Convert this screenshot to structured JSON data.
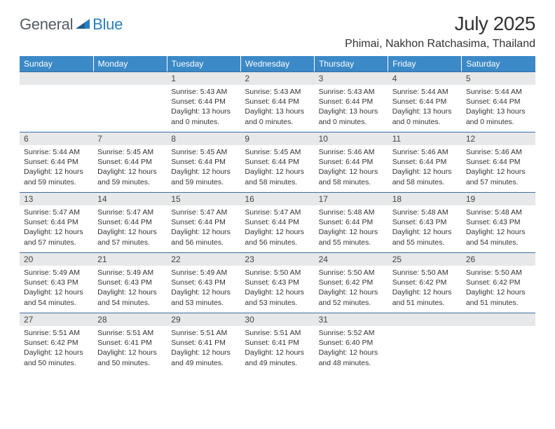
{
  "brand": {
    "name_left": "General",
    "name_right": "Blue",
    "icon_color": "#2a7fbf",
    "text_color_left": "#555c64",
    "text_color_right": "#2a7fbf"
  },
  "title": {
    "month_year": "July 2025",
    "location": "Phimai, Nakhon Ratchasima, Thailand"
  },
  "style": {
    "header_bg": "#3b89c7",
    "header_text": "#ffffff",
    "daynum_bg": "#e7e8e9",
    "daynum_border": "#3b6fa0",
    "body_text": "#333333",
    "page_bg": "#ffffff",
    "font_family": "Arial, Helvetica, sans-serif",
    "month_title_fontsize_pt": 21,
    "location_fontsize_pt": 12,
    "weekday_fontsize_pt": 9,
    "daynum_fontsize_pt": 9,
    "body_fontsize_pt": 8,
    "columns": 7,
    "rows": 5
  },
  "weekdays": [
    "Sunday",
    "Monday",
    "Tuesday",
    "Wednesday",
    "Thursday",
    "Friday",
    "Saturday"
  ],
  "weeks": [
    [
      {
        "blank": true
      },
      {
        "blank": true
      },
      {
        "day": "1",
        "sunrise": "Sunrise: 5:43 AM",
        "sunset": "Sunset: 6:44 PM",
        "daylight": "Daylight: 13 hours and 0 minutes."
      },
      {
        "day": "2",
        "sunrise": "Sunrise: 5:43 AM",
        "sunset": "Sunset: 6:44 PM",
        "daylight": "Daylight: 13 hours and 0 minutes."
      },
      {
        "day": "3",
        "sunrise": "Sunrise: 5:43 AM",
        "sunset": "Sunset: 6:44 PM",
        "daylight": "Daylight: 13 hours and 0 minutes."
      },
      {
        "day": "4",
        "sunrise": "Sunrise: 5:44 AM",
        "sunset": "Sunset: 6:44 PM",
        "daylight": "Daylight: 13 hours and 0 minutes."
      },
      {
        "day": "5",
        "sunrise": "Sunrise: 5:44 AM",
        "sunset": "Sunset: 6:44 PM",
        "daylight": "Daylight: 13 hours and 0 minutes."
      }
    ],
    [
      {
        "day": "6",
        "sunrise": "Sunrise: 5:44 AM",
        "sunset": "Sunset: 6:44 PM",
        "daylight": "Daylight: 12 hours and 59 minutes."
      },
      {
        "day": "7",
        "sunrise": "Sunrise: 5:45 AM",
        "sunset": "Sunset: 6:44 PM",
        "daylight": "Daylight: 12 hours and 59 minutes."
      },
      {
        "day": "8",
        "sunrise": "Sunrise: 5:45 AM",
        "sunset": "Sunset: 6:44 PM",
        "daylight": "Daylight: 12 hours and 59 minutes."
      },
      {
        "day": "9",
        "sunrise": "Sunrise: 5:45 AM",
        "sunset": "Sunset: 6:44 PM",
        "daylight": "Daylight: 12 hours and 58 minutes."
      },
      {
        "day": "10",
        "sunrise": "Sunrise: 5:46 AM",
        "sunset": "Sunset: 6:44 PM",
        "daylight": "Daylight: 12 hours and 58 minutes."
      },
      {
        "day": "11",
        "sunrise": "Sunrise: 5:46 AM",
        "sunset": "Sunset: 6:44 PM",
        "daylight": "Daylight: 12 hours and 58 minutes."
      },
      {
        "day": "12",
        "sunrise": "Sunrise: 5:46 AM",
        "sunset": "Sunset: 6:44 PM",
        "daylight": "Daylight: 12 hours and 57 minutes."
      }
    ],
    [
      {
        "day": "13",
        "sunrise": "Sunrise: 5:47 AM",
        "sunset": "Sunset: 6:44 PM",
        "daylight": "Daylight: 12 hours and 57 minutes."
      },
      {
        "day": "14",
        "sunrise": "Sunrise: 5:47 AM",
        "sunset": "Sunset: 6:44 PM",
        "daylight": "Daylight: 12 hours and 57 minutes."
      },
      {
        "day": "15",
        "sunrise": "Sunrise: 5:47 AM",
        "sunset": "Sunset: 6:44 PM",
        "daylight": "Daylight: 12 hours and 56 minutes."
      },
      {
        "day": "16",
        "sunrise": "Sunrise: 5:47 AM",
        "sunset": "Sunset: 6:44 PM",
        "daylight": "Daylight: 12 hours and 56 minutes."
      },
      {
        "day": "17",
        "sunrise": "Sunrise: 5:48 AM",
        "sunset": "Sunset: 6:44 PM",
        "daylight": "Daylight: 12 hours and 55 minutes."
      },
      {
        "day": "18",
        "sunrise": "Sunrise: 5:48 AM",
        "sunset": "Sunset: 6:43 PM",
        "daylight": "Daylight: 12 hours and 55 minutes."
      },
      {
        "day": "19",
        "sunrise": "Sunrise: 5:48 AM",
        "sunset": "Sunset: 6:43 PM",
        "daylight": "Daylight: 12 hours and 54 minutes."
      }
    ],
    [
      {
        "day": "20",
        "sunrise": "Sunrise: 5:49 AM",
        "sunset": "Sunset: 6:43 PM",
        "daylight": "Daylight: 12 hours and 54 minutes."
      },
      {
        "day": "21",
        "sunrise": "Sunrise: 5:49 AM",
        "sunset": "Sunset: 6:43 PM",
        "daylight": "Daylight: 12 hours and 54 minutes."
      },
      {
        "day": "22",
        "sunrise": "Sunrise: 5:49 AM",
        "sunset": "Sunset: 6:43 PM",
        "daylight": "Daylight: 12 hours and 53 minutes."
      },
      {
        "day": "23",
        "sunrise": "Sunrise: 5:50 AM",
        "sunset": "Sunset: 6:43 PM",
        "daylight": "Daylight: 12 hours and 53 minutes."
      },
      {
        "day": "24",
        "sunrise": "Sunrise: 5:50 AM",
        "sunset": "Sunset: 6:42 PM",
        "daylight": "Daylight: 12 hours and 52 minutes."
      },
      {
        "day": "25",
        "sunrise": "Sunrise: 5:50 AM",
        "sunset": "Sunset: 6:42 PM",
        "daylight": "Daylight: 12 hours and 51 minutes."
      },
      {
        "day": "26",
        "sunrise": "Sunrise: 5:50 AM",
        "sunset": "Sunset: 6:42 PM",
        "daylight": "Daylight: 12 hours and 51 minutes."
      }
    ],
    [
      {
        "day": "27",
        "sunrise": "Sunrise: 5:51 AM",
        "sunset": "Sunset: 6:42 PM",
        "daylight": "Daylight: 12 hours and 50 minutes."
      },
      {
        "day": "28",
        "sunrise": "Sunrise: 5:51 AM",
        "sunset": "Sunset: 6:41 PM",
        "daylight": "Daylight: 12 hours and 50 minutes."
      },
      {
        "day": "29",
        "sunrise": "Sunrise: 5:51 AM",
        "sunset": "Sunset: 6:41 PM",
        "daylight": "Daylight: 12 hours and 49 minutes."
      },
      {
        "day": "30",
        "sunrise": "Sunrise: 5:51 AM",
        "sunset": "Sunset: 6:41 PM",
        "daylight": "Daylight: 12 hours and 49 minutes."
      },
      {
        "day": "31",
        "sunrise": "Sunrise: 5:52 AM",
        "sunset": "Sunset: 6:40 PM",
        "daylight": "Daylight: 12 hours and 48 minutes."
      },
      {
        "blank": true
      },
      {
        "blank": true
      }
    ]
  ]
}
